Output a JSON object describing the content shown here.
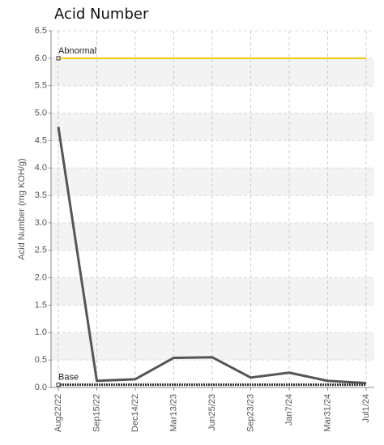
{
  "chart_data": {
    "type": "line",
    "title": "Acid Number",
    "y_label": "Acid Number (mg KOH/g)",
    "categories": [
      "Aug22/22",
      "Sep15/22",
      "Dec14/22",
      "Mar13/23",
      "Jun25/23",
      "Sep23/23",
      "Jan7/24",
      "Mar31/24",
      "Jul1/24"
    ],
    "series": [
      {
        "name": "Acid Number",
        "color": "#555555",
        "values": [
          4.75,
          0.12,
          0.15,
          0.54,
          0.55,
          0.18,
          0.27,
          0.12,
          0.08
        ]
      }
    ],
    "reference_lines": [
      {
        "label": "Abnormal",
        "value": 6.0,
        "color": "#f0c800"
      },
      {
        "label": "Base",
        "value": 0.05,
        "color": "#333333"
      }
    ],
    "ylim": [
      0,
      6.5
    ],
    "yticks": [
      {
        "value": 0,
        "label": "0.0"
      },
      0.5,
      {
        "value": 1,
        "label": "1.0"
      },
      1.5,
      {
        "value": 2,
        "label": "2.0"
      },
      2.5,
      {
        "value": 3,
        "label": "3.0"
      },
      3.5,
      {
        "value": 4,
        "label": "4.0"
      },
      4.5,
      {
        "value": 5,
        "label": "5.0"
      },
      5.5,
      {
        "value": 6,
        "label": "6.0"
      },
      6.5
    ],
    "grid": true
  }
}
